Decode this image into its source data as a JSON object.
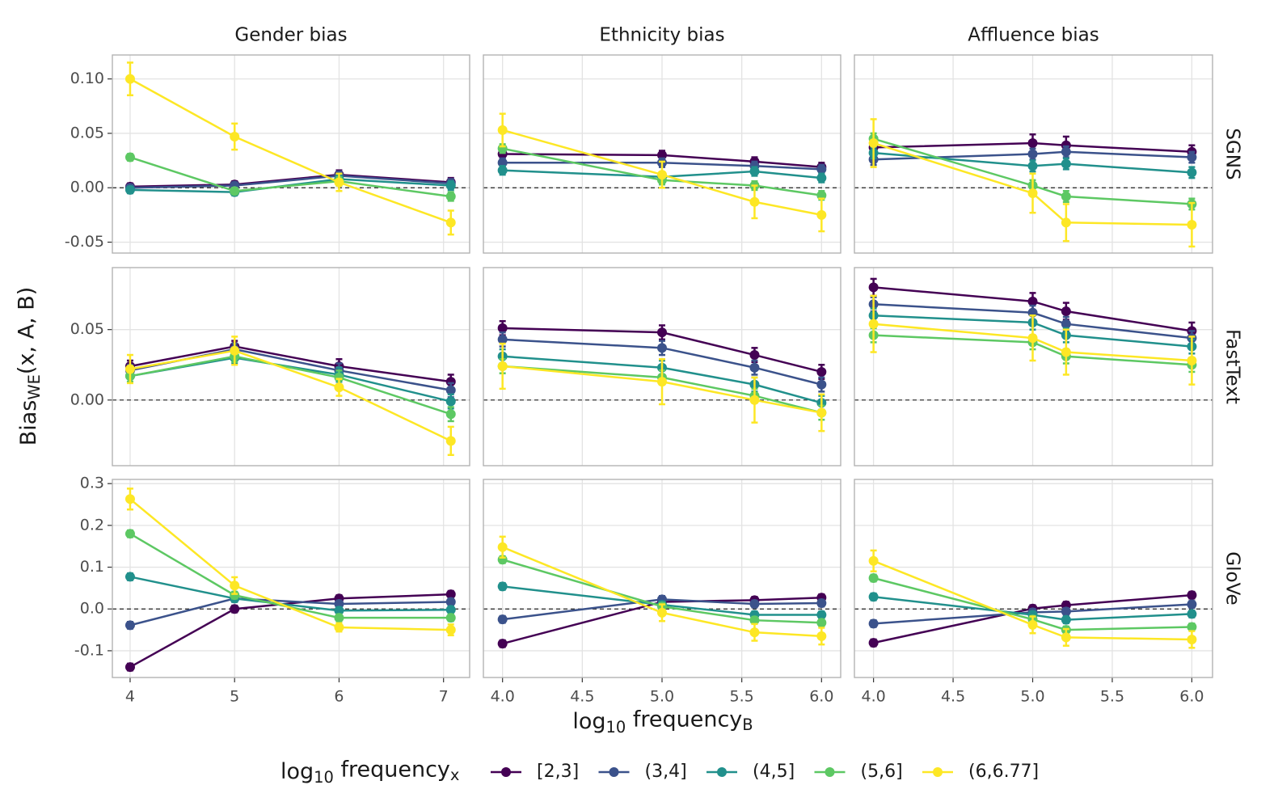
{
  "chart_data": {
    "type": "line",
    "y_label": [
      {
        "text": "Bias"
      },
      {
        "text": "WE",
        "sub": true
      },
      {
        "text": "(x, A, B)"
      }
    ],
    "x_label": [
      {
        "text": "log"
      },
      {
        "text": "10",
        "sub": true
      },
      {
        "text": " frequency"
      },
      {
        "text": "B",
        "sub": true
      }
    ],
    "reference_line": 0,
    "grid": true,
    "legend": {
      "position": "bottom",
      "title": [
        {
          "text": "log"
        },
        {
          "text": "10",
          "sub": true
        },
        {
          "text": " frequency"
        },
        {
          "text": "x",
          "sub": true
        }
      ],
      "series": [
        {
          "name": "[2,3]",
          "color": "#440154"
        },
        {
          "name": "(3,4]",
          "color": "#3b528b"
        },
        {
          "name": "(4,5]",
          "color": "#21908c"
        },
        {
          "name": "(5,6]",
          "color": "#5dc863"
        },
        {
          "name": "(6,6.77]",
          "color": "#fde725"
        }
      ]
    },
    "columns": [
      {
        "title": "Gender bias",
        "x": [
          4,
          5,
          6,
          7.07
        ],
        "xlim": [
          3.83,
          7.25
        ],
        "xticks": [
          4,
          5,
          6,
          7
        ]
      },
      {
        "title": "Ethnicity bias",
        "x": [
          4,
          5,
          5.58,
          6
        ],
        "xlim": [
          3.88,
          6.12
        ],
        "xticks": [
          {
            "value": 4,
            "label": "4.0"
          },
          4.5,
          {
            "value": 5,
            "label": "5.0"
          },
          5.5,
          {
            "value": 6,
            "label": "6.0"
          }
        ]
      },
      {
        "title": "Affluence bias",
        "x": [
          4,
          5,
          5.21,
          6
        ],
        "xlim": [
          3.88,
          6.13
        ],
        "xticks": [
          {
            "value": 4,
            "label": "4.0"
          },
          4.5,
          {
            "value": 5,
            "label": "5.0"
          },
          5.5,
          {
            "value": 6,
            "label": "6.0"
          }
        ]
      }
    ],
    "rows": [
      {
        "title": "SGNS",
        "ylim": [
          -0.06,
          0.122
        ],
        "yticks": [
          {
            "value": -0.05,
            "label": "-0.05"
          },
          {
            "value": 0,
            "label": "0.00"
          },
          {
            "value": 0.05,
            "label": "0.05"
          },
          {
            "value": 0.1,
            "label": "0.10"
          }
        ],
        "panels": [
          {
            "series": [
              {
                "values": [
                  0.001,
                  0.003,
                  0.012,
                  0.005
                ],
                "errors": [
                  0.003,
                  0.003,
                  0.004,
                  0.004
                ]
              },
              {
                "values": [
                  0.0,
                  0.002,
                  0.011,
                  0.004
                ],
                "errors": [
                  0.003,
                  0.003,
                  0.004,
                  0.004
                ]
              },
              {
                "values": [
                  -0.002,
                  -0.004,
                  0.008,
                  0.002
                ],
                "errors": [
                  0.003,
                  0.003,
                  0.004,
                  0.004
                ]
              },
              {
                "values": [
                  0.028,
                  -0.003,
                  0.006,
                  -0.008
                ],
                "errors": [
                  0.003,
                  0.003,
                  0.004,
                  0.004
                ]
              },
              {
                "values": [
                  0.1,
                  0.047,
                  0.005,
                  -0.032
                ],
                "errors": [
                  0.015,
                  0.012,
                  0.008,
                  0.011
                ]
              }
            ]
          },
          {
            "series": [
              {
                "values": [
                  0.031,
                  0.03,
                  0.024,
                  0.019
                ],
                "errors": [
                  0.004,
                  0.004,
                  0.004,
                  0.004
                ]
              },
              {
                "values": [
                  0.023,
                  0.023,
                  0.02,
                  0.017
                ],
                "errors": [
                  0.004,
                  0.004,
                  0.004,
                  0.004
                ]
              },
              {
                "values": [
                  0.016,
                  0.01,
                  0.015,
                  0.009
                ],
                "errors": [
                  0.004,
                  0.004,
                  0.004,
                  0.004
                ]
              },
              {
                "values": [
                  0.036,
                  0.007,
                  0.002,
                  -0.007
                ],
                "errors": [
                  0.004,
                  0.004,
                  0.004,
                  0.004
                ]
              },
              {
                "values": [
                  0.053,
                  0.012,
                  -0.013,
                  -0.025
                ],
                "errors": [
                  0.015,
                  0.012,
                  0.015,
                  0.015
                ]
              }
            ]
          },
          {
            "series": [
              {
                "values": [
                  0.037,
                  0.041,
                  0.039,
                  0.033
                ],
                "errors": [
                  0.005,
                  0.008,
                  0.008,
                  0.006
                ]
              },
              {
                "values": [
                  0.026,
                  0.031,
                  0.033,
                  0.028
                ],
                "errors": [
                  0.005,
                  0.005,
                  0.005,
                  0.005
                ]
              },
              {
                "values": [
                  0.032,
                  0.02,
                  0.022,
                  0.014
                ],
                "errors": [
                  0.005,
                  0.005,
                  0.005,
                  0.005
                ]
              },
              {
                "values": [
                  0.045,
                  0.002,
                  -0.008,
                  -0.015
                ],
                "errors": [
                  0.005,
                  0.005,
                  0.005,
                  0.005
                ]
              },
              {
                "values": [
                  0.041,
                  -0.005,
                  -0.032,
                  -0.034
                ],
                "errors": [
                  0.022,
                  0.018,
                  0.017,
                  0.02
                ]
              }
            ]
          }
        ]
      },
      {
        "title": "FastText",
        "ylim": [
          -0.0466,
          0.094
        ],
        "yticks": [
          {
            "value": 0,
            "label": "0.00"
          },
          {
            "value": 0.05,
            "label": "0.05"
          }
        ],
        "panels": [
          {
            "series": [
              {
                "values": [
                  0.024,
                  0.038,
                  0.024,
                  0.013
                ],
                "errors": [
                  0.004,
                  0.004,
                  0.005,
                  0.005
                ]
              },
              {
                "values": [
                  0.021,
                  0.036,
                  0.021,
                  0.007
                ],
                "errors": [
                  0.004,
                  0.004,
                  0.005,
                  0.005
                ]
              },
              {
                "values": [
                  0.017,
                  0.03,
                  0.018,
                  -0.001
                ],
                "errors": [
                  0.004,
                  0.004,
                  0.005,
                  0.005
                ]
              },
              {
                "values": [
                  0.017,
                  0.031,
                  0.016,
                  -0.01
                ],
                "errors": [
                  0.004,
                  0.004,
                  0.005,
                  0.005
                ]
              },
              {
                "values": [
                  0.022,
                  0.035,
                  0.009,
                  -0.029
                ],
                "errors": [
                  0.01,
                  0.01,
                  0.006,
                  0.01
                ]
              }
            ]
          },
          {
            "series": [
              {
                "values": [
                  0.051,
                  0.048,
                  0.032,
                  0.02
                ],
                "errors": [
                  0.005,
                  0.005,
                  0.005,
                  0.005
                ]
              },
              {
                "values": [
                  0.043,
                  0.037,
                  0.023,
                  0.011
                ],
                "errors": [
                  0.005,
                  0.005,
                  0.005,
                  0.005
                ]
              },
              {
                "values": [
                  0.031,
                  0.023,
                  0.011,
                  -0.002
                ],
                "errors": [
                  0.005,
                  0.005,
                  0.005,
                  0.005
                ]
              },
              {
                "values": [
                  0.024,
                  0.016,
                  0.003,
                  -0.009
                ],
                "errors": [
                  0.005,
                  0.005,
                  0.005,
                  0.005
                ]
              },
              {
                "values": [
                  0.024,
                  0.013,
                  0.0,
                  -0.009
                ],
                "errors": [
                  0.016,
                  0.016,
                  0.016,
                  0.013
                ]
              }
            ]
          },
          {
            "series": [
              {
                "values": [
                  0.08,
                  0.07,
                  0.063,
                  0.049
                ],
                "errors": [
                  0.006,
                  0.006,
                  0.006,
                  0.006
                ]
              },
              {
                "values": [
                  0.068,
                  0.062,
                  0.054,
                  0.044
                ],
                "errors": [
                  0.005,
                  0.005,
                  0.005,
                  0.005
                ]
              },
              {
                "values": [
                  0.06,
                  0.055,
                  0.046,
                  0.038
                ],
                "errors": [
                  0.005,
                  0.005,
                  0.005,
                  0.005
                ]
              },
              {
                "values": [
                  0.046,
                  0.041,
                  0.031,
                  0.025
                ],
                "errors": [
                  0.005,
                  0.005,
                  0.005,
                  0.005
                ]
              },
              {
                "values": [
                  0.054,
                  0.044,
                  0.034,
                  0.028
                ],
                "errors": [
                  0.02,
                  0.016,
                  0.016,
                  0.017
                ]
              }
            ]
          }
        ]
      },
      {
        "title": "GloVe",
        "ylim": [
          -0.164,
          0.31
        ],
        "yticks": [
          {
            "value": -0.1,
            "label": "-0.1"
          },
          {
            "value": 0,
            "label": "0.0"
          },
          {
            "value": 0.1,
            "label": "0.1"
          },
          {
            "value": 0.2,
            "label": "0.2"
          },
          {
            "value": 0.3,
            "label": "0.3"
          }
        ],
        "panels": [
          {
            "series": [
              {
                "values": [
                  -0.139,
                  0.0,
                  0.025,
                  0.035
                ],
                "errors": [
                  0.008,
                  0.008,
                  0.008,
                  0.008
                ]
              },
              {
                "values": [
                  -0.039,
                  0.025,
                  0.012,
                  0.017
                ],
                "errors": [
                  0.008,
                  0.008,
                  0.008,
                  0.008
                ]
              },
              {
                "values": [
                  0.077,
                  0.025,
                  -0.004,
                  -0.002
                ],
                "errors": [
                  0.008,
                  0.008,
                  0.008,
                  0.008
                ]
              },
              {
                "values": [
                  0.18,
                  0.033,
                  -0.021,
                  -0.021
                ],
                "errors": [
                  0.008,
                  0.008,
                  0.008,
                  0.008
                ]
              },
              {
                "values": [
                  0.263,
                  0.056,
                  -0.044,
                  -0.05
                ],
                "errors": [
                  0.025,
                  0.02,
                  0.01,
                  0.013
                ]
              }
            ]
          },
          {
            "series": [
              {
                "values": [
                  -0.083,
                  0.017,
                  0.021,
                  0.027
                ],
                "errors": [
                  0.008,
                  0.008,
                  0.008,
                  0.008
                ]
              },
              {
                "values": [
                  -0.025,
                  0.023,
                  0.012,
                  0.014
                ],
                "errors": [
                  0.008,
                  0.008,
                  0.008,
                  0.008
                ]
              },
              {
                "values": [
                  0.054,
                  0.01,
                  -0.014,
                  -0.014
                ],
                "errors": [
                  0.008,
                  0.008,
                  0.008,
                  0.008
                ]
              },
              {
                "values": [
                  0.118,
                  0.006,
                  -0.027,
                  -0.033
                ],
                "errors": [
                  0.008,
                  0.008,
                  0.008,
                  0.008
                ]
              },
              {
                "values": [
                  0.148,
                  -0.009,
                  -0.056,
                  -0.065
                ],
                "errors": [
                  0.025,
                  0.02,
                  0.02,
                  0.02
                ]
              }
            ]
          },
          {
            "series": [
              {
                "values": [
                  -0.081,
                  0.001,
                  0.009,
                  0.033
                ],
                "errors": [
                  0.008,
                  0.008,
                  0.008,
                  0.008
                ]
              },
              {
                "values": [
                  -0.035,
                  -0.008,
                  -0.006,
                  0.011
                ],
                "errors": [
                  0.008,
                  0.008,
                  0.008,
                  0.008
                ]
              },
              {
                "values": [
                  0.029,
                  -0.014,
                  -0.026,
                  -0.012
                ],
                "errors": [
                  0.008,
                  0.008,
                  0.008,
                  0.008
                ]
              },
              {
                "values": [
                  0.074,
                  -0.025,
                  -0.05,
                  -0.043
                ],
                "errors": [
                  0.008,
                  0.008,
                  0.008,
                  0.008
                ]
              },
              {
                "values": [
                  0.115,
                  -0.038,
                  -0.068,
                  -0.073
                ],
                "errors": [
                  0.025,
                  0.02,
                  0.02,
                  0.02
                ]
              }
            ]
          }
        ]
      }
    ]
  }
}
